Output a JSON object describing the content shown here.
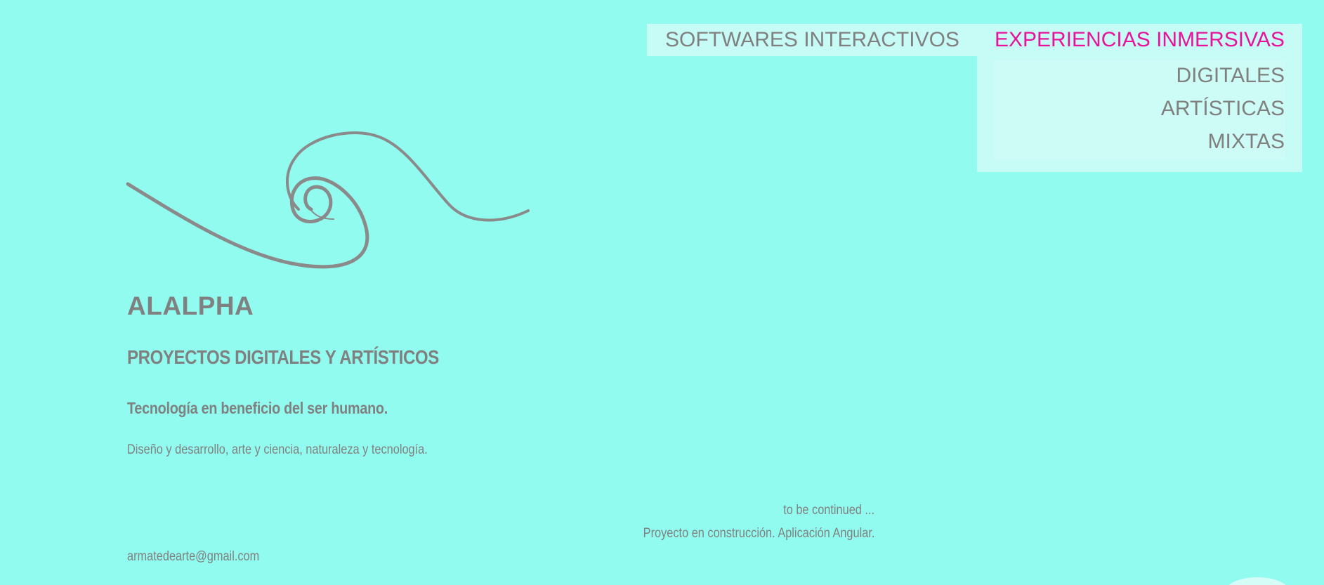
{
  "nav": {
    "items": [
      {
        "label": "SOFTWARES INTERACTIVOS"
      },
      {
        "label": "EXPERIENCIAS INMERSIVAS"
      }
    ],
    "active_color": "#e8139a"
  },
  "dropdown": {
    "items": [
      {
        "label": "DIGITALES"
      },
      {
        "label": "ARTÍSTICAS"
      },
      {
        "label": "MIXTAS"
      }
    ]
  },
  "hero": {
    "brand": "ALALPHA",
    "subtitle": "PROYECTOS DIGITALES Y ARTÍSTICOS",
    "tagline": "Tecnología en beneficio del ser humano.",
    "description": "Diseño y desarrollo, arte y ciencia, naturaleza y tecnología."
  },
  "footer": {
    "continued": "to be continued ...",
    "construction": "Proyecto en construcción. Aplicación Angular.",
    "email": "armatedearte@gmail.com"
  },
  "theme": {
    "background": "#92fbf0",
    "panel": "#c7fbf5",
    "text": "#808080"
  },
  "icons": {
    "logo": "swirl-wave-icon"
  }
}
